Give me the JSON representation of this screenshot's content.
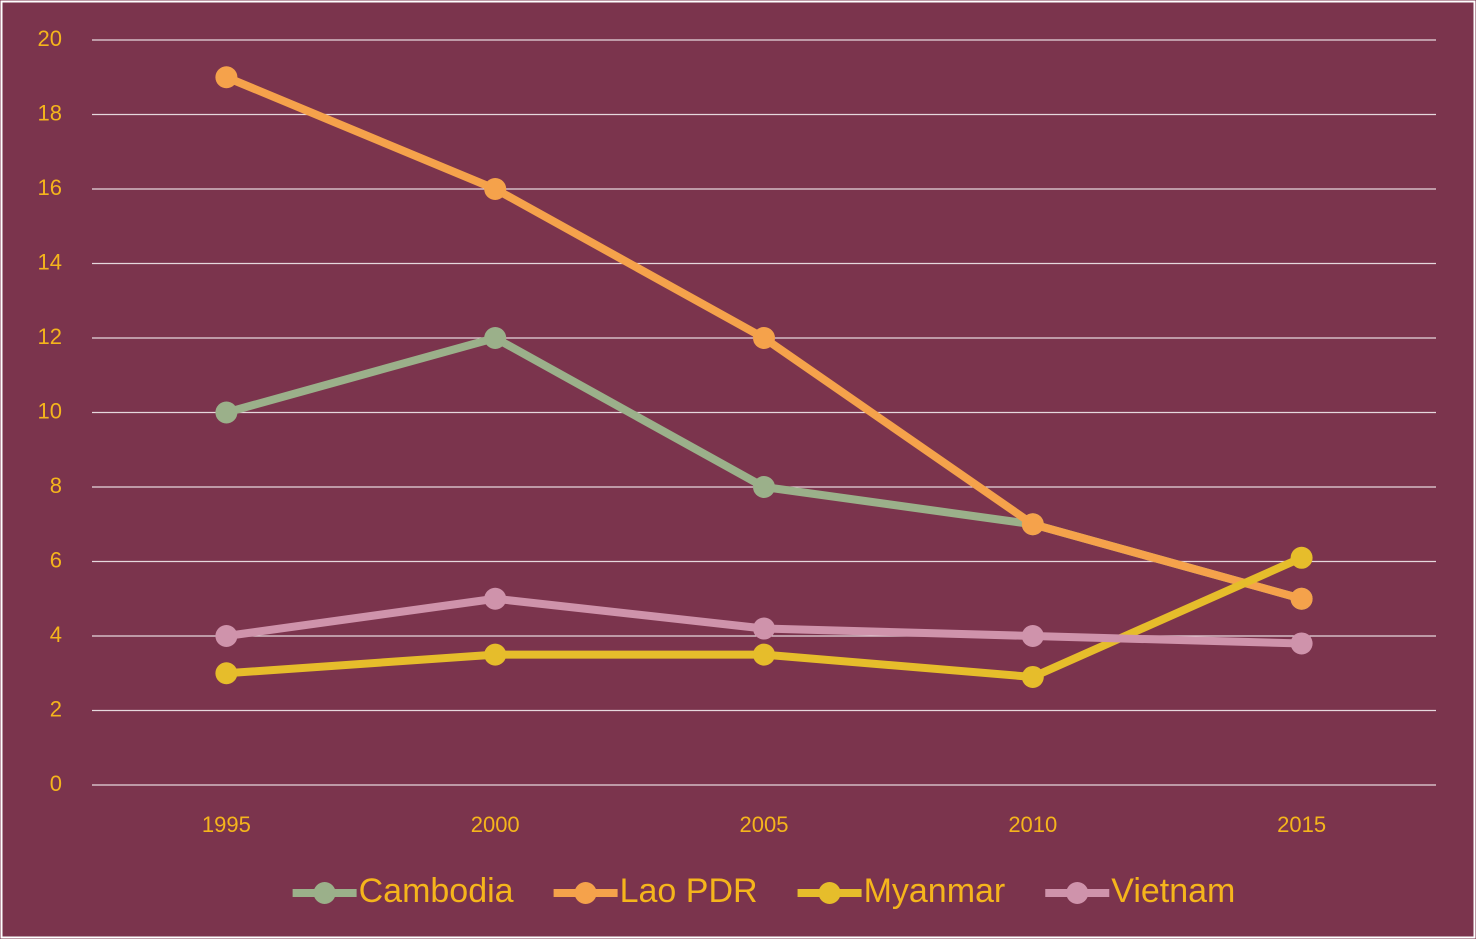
{
  "chart_data": {
    "type": "line",
    "categories": [
      "1995",
      "2000",
      "2005",
      "2010",
      "2015"
    ],
    "series": [
      {
        "name": "Cambodia",
        "color": "#9bb08a",
        "values": [
          10,
          12,
          8,
          7,
          5
        ]
      },
      {
        "name": "Lao PDR",
        "color": "#f5a24b",
        "values": [
          19,
          16,
          12,
          7,
          5
        ]
      },
      {
        "name": "Myanmar",
        "color": "#e6bd2b",
        "values": [
          3,
          3.5,
          3.5,
          2.9,
          6.1
        ]
      },
      {
        "name": "Vietnam",
        "color": "#cf93ab",
        "values": [
          4,
          5,
          4.2,
          4,
          3.8
        ]
      }
    ],
    "ylim": [
      0,
      20
    ],
    "yticks": [
      0,
      2,
      4,
      6,
      8,
      10,
      12,
      14,
      16,
      18,
      20
    ],
    "grid": true,
    "legend": "bottom"
  }
}
